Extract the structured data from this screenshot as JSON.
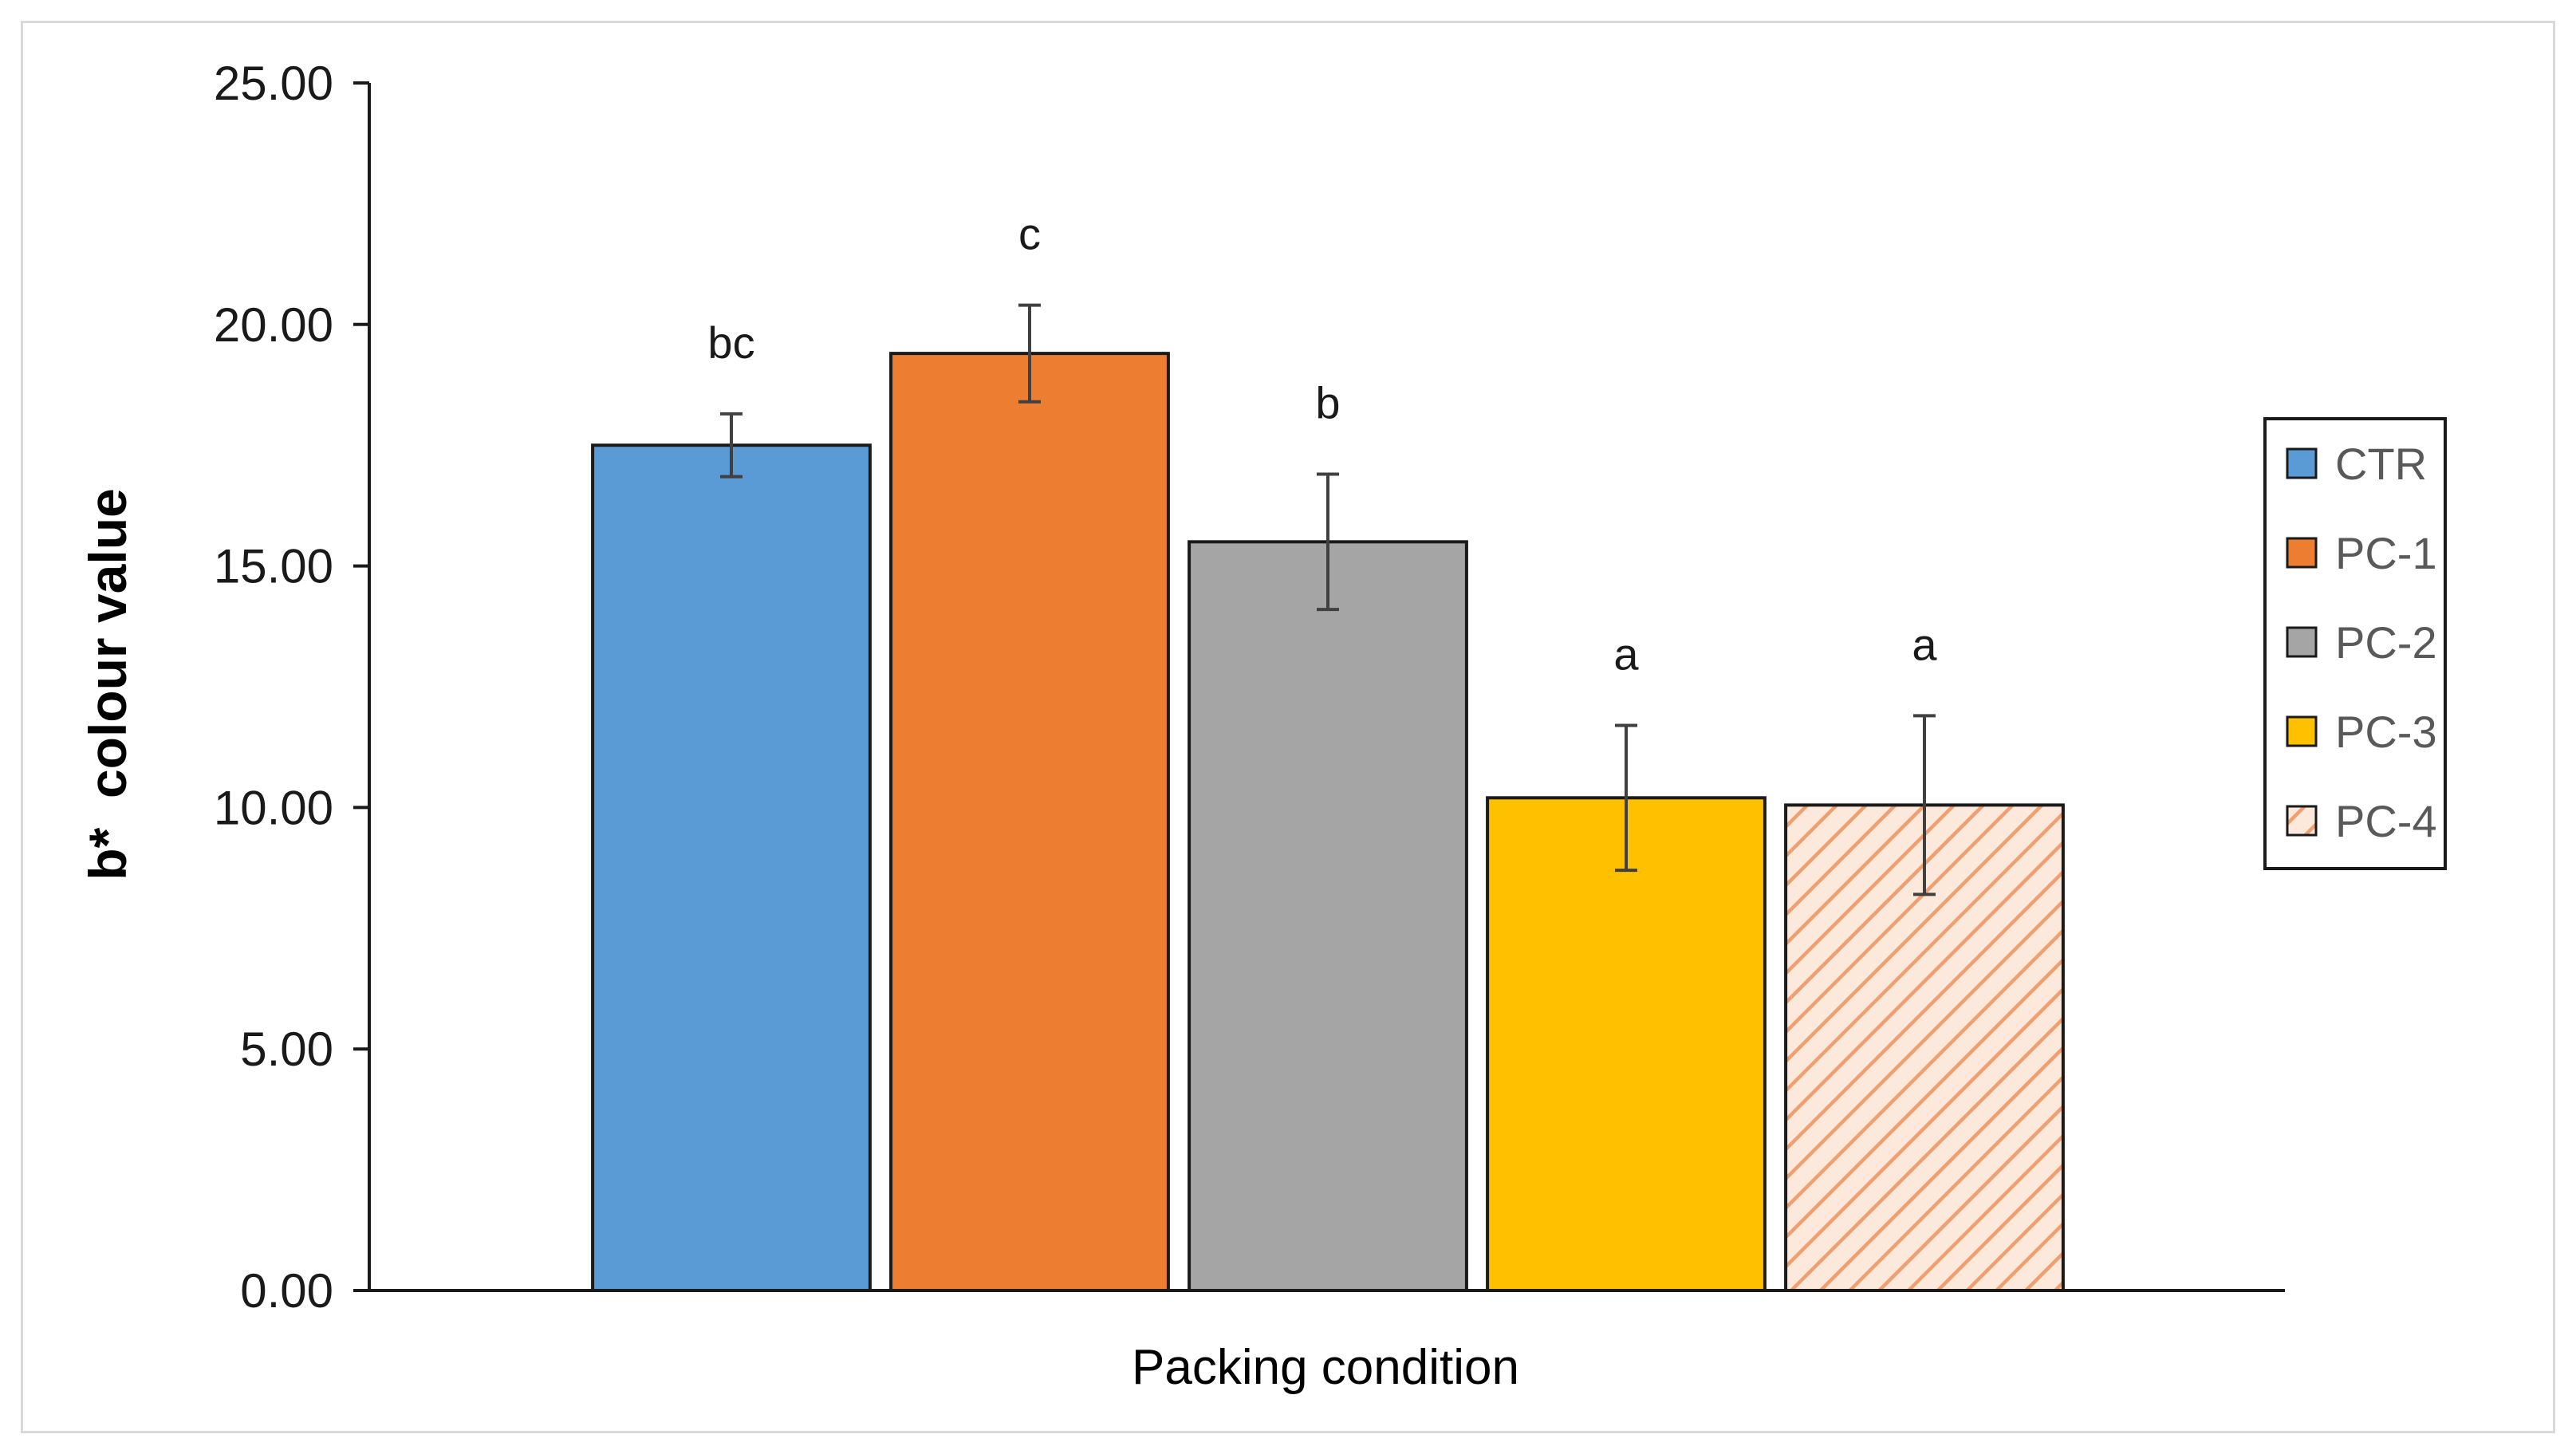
{
  "chart_data": {
    "type": "bar",
    "xlabel": "Packing condition",
    "ylabel": "b*  colour value",
    "ylim": [
      0,
      25
    ],
    "yticks": [
      "0.00",
      "5.00",
      "10.00",
      "15.00",
      "20.00",
      "25.00"
    ],
    "grid": false,
    "legend_position": "right",
    "series": [
      {
        "name": "CTR",
        "value": 17.5,
        "error": 0.65,
        "significance": "bc",
        "color": "#5b9bd5",
        "pattern": "solid"
      },
      {
        "name": "PC-1",
        "value": 19.4,
        "error": 1.0,
        "significance": "c",
        "color": "#ed7d31",
        "pattern": "solid"
      },
      {
        "name": "PC-2",
        "value": 15.5,
        "error": 1.4,
        "significance": "b",
        "color": "#a5a5a5",
        "pattern": "solid"
      },
      {
        "name": "PC-3",
        "value": 10.2,
        "error": 1.5,
        "significance": "a",
        "color": "#ffc000",
        "pattern": "solid"
      },
      {
        "name": "PC-4",
        "value": 10.05,
        "error": 1.85,
        "significance": "a",
        "color": "#f4b183",
        "pattern": "hatched"
      }
    ]
  }
}
